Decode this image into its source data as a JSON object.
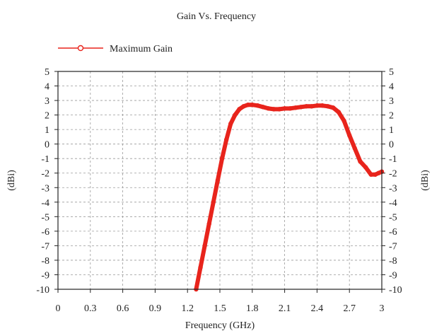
{
  "chart_data": {
    "type": "line",
    "title": "Gain Vs. Frequency",
    "xlabel": "Frequency (GHz)",
    "ylabel": "(dBi)",
    "ylabel_right": "(dBi)",
    "xlim": [
      0,
      3
    ],
    "ylim": [
      -10,
      5
    ],
    "x_ticks": [
      "0",
      "0.3",
      "0.6",
      "0.9",
      "1.2",
      "1.5",
      "1.8",
      "2.1",
      "2.4",
      "2.7",
      "3"
    ],
    "x_tick_values": [
      0,
      0.3,
      0.6,
      0.9,
      1.2,
      1.5,
      1.8,
      2.1,
      2.4,
      2.7,
      3.0
    ],
    "y_ticks": [
      "5",
      "4",
      "3",
      "2",
      "1",
      "0",
      "-1",
      "-2",
      "-3",
      "-4",
      "-5",
      "-6",
      "-7",
      "-8",
      "-9",
      "-10"
    ],
    "y_tick_values": [
      5,
      4,
      3,
      2,
      1,
      0,
      -1,
      -2,
      -3,
      -4,
      -5,
      -6,
      -7,
      -8,
      -9,
      -10
    ],
    "grid": true,
    "legend_placement": "top-left",
    "series_color": "#e8241c",
    "series": [
      {
        "name": "Maximum Gain",
        "x": [
          1.28,
          1.32,
          1.36,
          1.4,
          1.44,
          1.48,
          1.52,
          1.56,
          1.6,
          1.64,
          1.68,
          1.72,
          1.76,
          1.8,
          1.85,
          1.9,
          1.95,
          2.0,
          2.05,
          2.1,
          2.15,
          2.2,
          2.25,
          2.3,
          2.35,
          2.4,
          2.45,
          2.5,
          2.55,
          2.6,
          2.65,
          2.7,
          2.75,
          2.8,
          2.85,
          2.9,
          2.94,
          2.97,
          3.0
        ],
        "y": [
          -10.0,
          -8.5,
          -7.0,
          -5.5,
          -4.0,
          -2.5,
          -1.0,
          0.3,
          1.4,
          2.0,
          2.4,
          2.6,
          2.7,
          2.7,
          2.65,
          2.55,
          2.45,
          2.4,
          2.4,
          2.45,
          2.45,
          2.5,
          2.55,
          2.6,
          2.6,
          2.65,
          2.65,
          2.6,
          2.5,
          2.2,
          1.6,
          0.6,
          -0.3,
          -1.2,
          -1.6,
          -2.1,
          -2.1,
          -2.0,
          -1.9
        ]
      }
    ]
  }
}
